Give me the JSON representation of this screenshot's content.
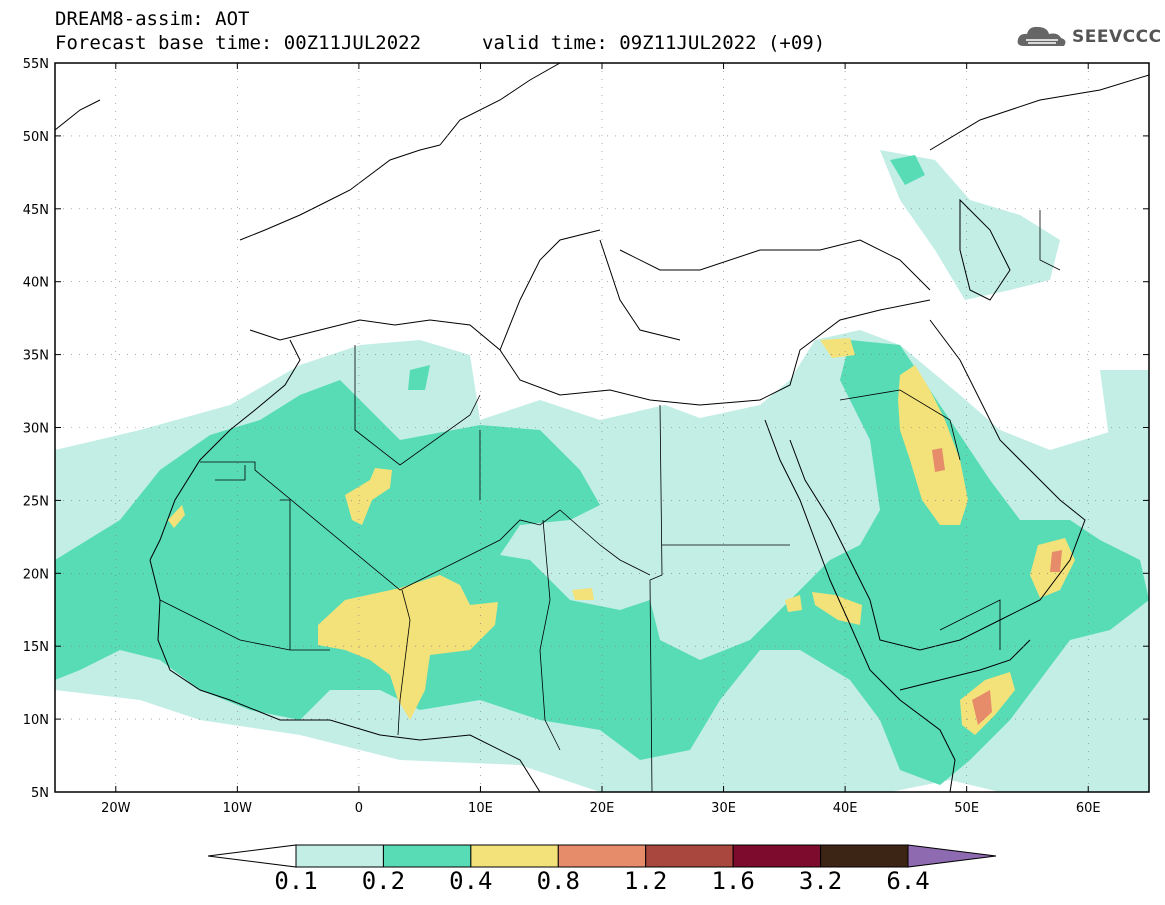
{
  "header": {
    "line1": "DREAM8-assim: AOT",
    "line2_base": "Forecast base time: 00Z11JUL2022",
    "line2_valid": "valid time: 09Z11JUL2022 (+09)",
    "logo_text": "SEEVCCC",
    "logo_icon": "cloud-icon"
  },
  "map": {
    "lon_range": [
      -25,
      65
    ],
    "lat_range": [
      5,
      55
    ],
    "lat_ticks": [
      {
        "value": 55,
        "label": "55N"
      },
      {
        "value": 50,
        "label": "50N"
      },
      {
        "value": 45,
        "label": "45N"
      },
      {
        "value": 40,
        "label": "40N"
      },
      {
        "value": 35,
        "label": "35N"
      },
      {
        "value": 30,
        "label": "30N"
      },
      {
        "value": 25,
        "label": "25N"
      },
      {
        "value": 20,
        "label": "20N"
      },
      {
        "value": 15,
        "label": "15N"
      },
      {
        "value": 10,
        "label": "10N"
      },
      {
        "value": 5,
        "label": "5N"
      }
    ],
    "lon_ticks": [
      {
        "value": -20,
        "label": "20W"
      },
      {
        "value": -10,
        "label": "10W"
      },
      {
        "value": 0,
        "label": "0"
      },
      {
        "value": 10,
        "label": "10E"
      },
      {
        "value": 20,
        "label": "20E"
      },
      {
        "value": 30,
        "label": "30E"
      },
      {
        "value": 40,
        "label": "40E"
      },
      {
        "value": 50,
        "label": "50E"
      },
      {
        "value": 60,
        "label": "60E"
      }
    ],
    "grid": "dotted",
    "field": "AOT"
  },
  "colorbar": {
    "colors": [
      "#ffffff",
      "#c2eee6",
      "#58dcb5",
      "#f3e27a",
      "#e78c6b",
      "#a9473e",
      "#7c0b2e",
      "#3c2514",
      "#8e6bb0"
    ],
    "levels": [
      "0.1",
      "0.2",
      "0.4",
      "0.8",
      "1.2",
      "1.6",
      "3.2",
      "6.4"
    ]
  }
}
